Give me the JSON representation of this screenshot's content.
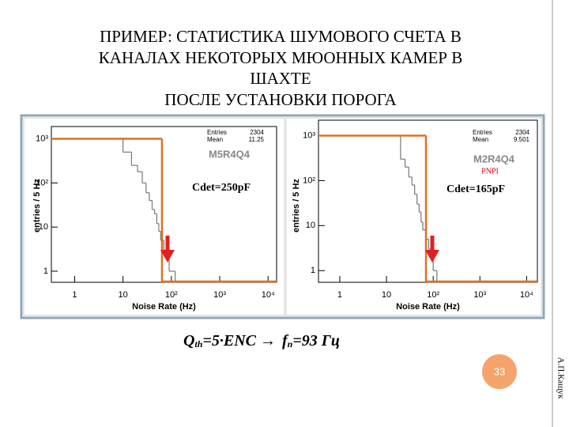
{
  "slide": {
    "title_lines": [
      "ПРИМЕР: СТАТИСТИКА ШУМОВОГО СЧЕТА В",
      "КАНАЛАХ НЕКОТОРЫХ МЮОННЫХ КАМЕР В",
      "ШАХТЕ",
      "ПОСЛЕ УСТАНОВКИ ПОРОГА"
    ],
    "formula": {
      "q": "Q",
      "q_sub": "th",
      "middle": "=5·ENC →",
      "f": "f",
      "f_sub": "n",
      "result": "=93 Гц"
    },
    "author": "А.П.Кащук",
    "page_number": "33"
  },
  "charts": [
    {
      "type": "histogram",
      "title": "M5R4Q4",
      "annotation": "Cdet=250pF",
      "stats": [
        [
          "Entries",
          "2304"
        ],
        [
          "Mean",
          "11.25"
        ]
      ],
      "x_label": "Noise Rate (Hz)",
      "y_label": "entries / 5 Hz",
      "log_x": true,
      "log_y": true,
      "xlim": [
        0.33,
        15000
      ],
      "ylim": [
        0.56,
        1900
      ],
      "xticks": [
        1,
        10,
        {
          "value": 100,
          "label": "10²"
        },
        {
          "value": 1000,
          "label": "10³"
        },
        {
          "value": 10000,
          "label": "10⁴"
        }
      ],
      "yticks": [
        1,
        10,
        {
          "value": 100,
          "label": "10²"
        },
        {
          "value": 1000,
          "label": "10³"
        }
      ],
      "histograms": [
        {
          "color": "#777777",
          "bins": [
            0.33,
            10,
            15,
            20,
            25,
            30,
            35,
            40,
            45,
            50,
            55,
            60,
            70,
            80,
            90,
            100,
            110,
            120
          ],
          "counts": [
            1000,
            500,
            250,
            180,
            100,
            60,
            40,
            25,
            20,
            12,
            8,
            5,
            3,
            2,
            1,
            1,
            1
          ]
        },
        {
          "color": "#e0701f",
          "bins": [
            0.33,
            64
          ],
          "counts": [
            1000
          ]
        }
      ]
    },
    {
      "type": "histogram",
      "title": "M2R4Q4",
      "subtitle": "PNPI",
      "annotation": "Cdet=165pF",
      "stats": [
        [
          "Entries",
          "2304"
        ],
        [
          "Mean",
          "9.501"
        ]
      ],
      "x_label": "Noise Rate (Hz)",
      "y_label": "entries / 5 Hz",
      "log_x": true,
      "log_y": true,
      "xlim": [
        0.35,
        17000
      ],
      "ylim": [
        0.55,
        2200
      ],
      "xticks": [
        1,
        10,
        {
          "value": 100,
          "label": "10²"
        },
        {
          "value": 1000,
          "label": "10³"
        },
        {
          "value": 10000,
          "label": "10⁴"
        }
      ],
      "yticks": [
        1,
        10,
        {
          "value": 100,
          "label": "10²"
        },
        {
          "value": 1000,
          "label": "10³"
        }
      ],
      "histograms": [
        {
          "color": "#777777",
          "bins": [
            0.35,
            20,
            25,
            30,
            35,
            40,
            45,
            50,
            55,
            60,
            70,
            80,
            90,
            100,
            110,
            120
          ],
          "counts": [
            1000,
            300,
            200,
            120,
            80,
            50,
            30,
            20,
            12,
            8,
            5,
            3,
            2,
            1,
            1
          ]
        },
        {
          "color": "#e0701f",
          "bins": [
            0.35,
            70
          ],
          "counts": [
            1000
          ]
        }
      ]
    }
  ]
}
